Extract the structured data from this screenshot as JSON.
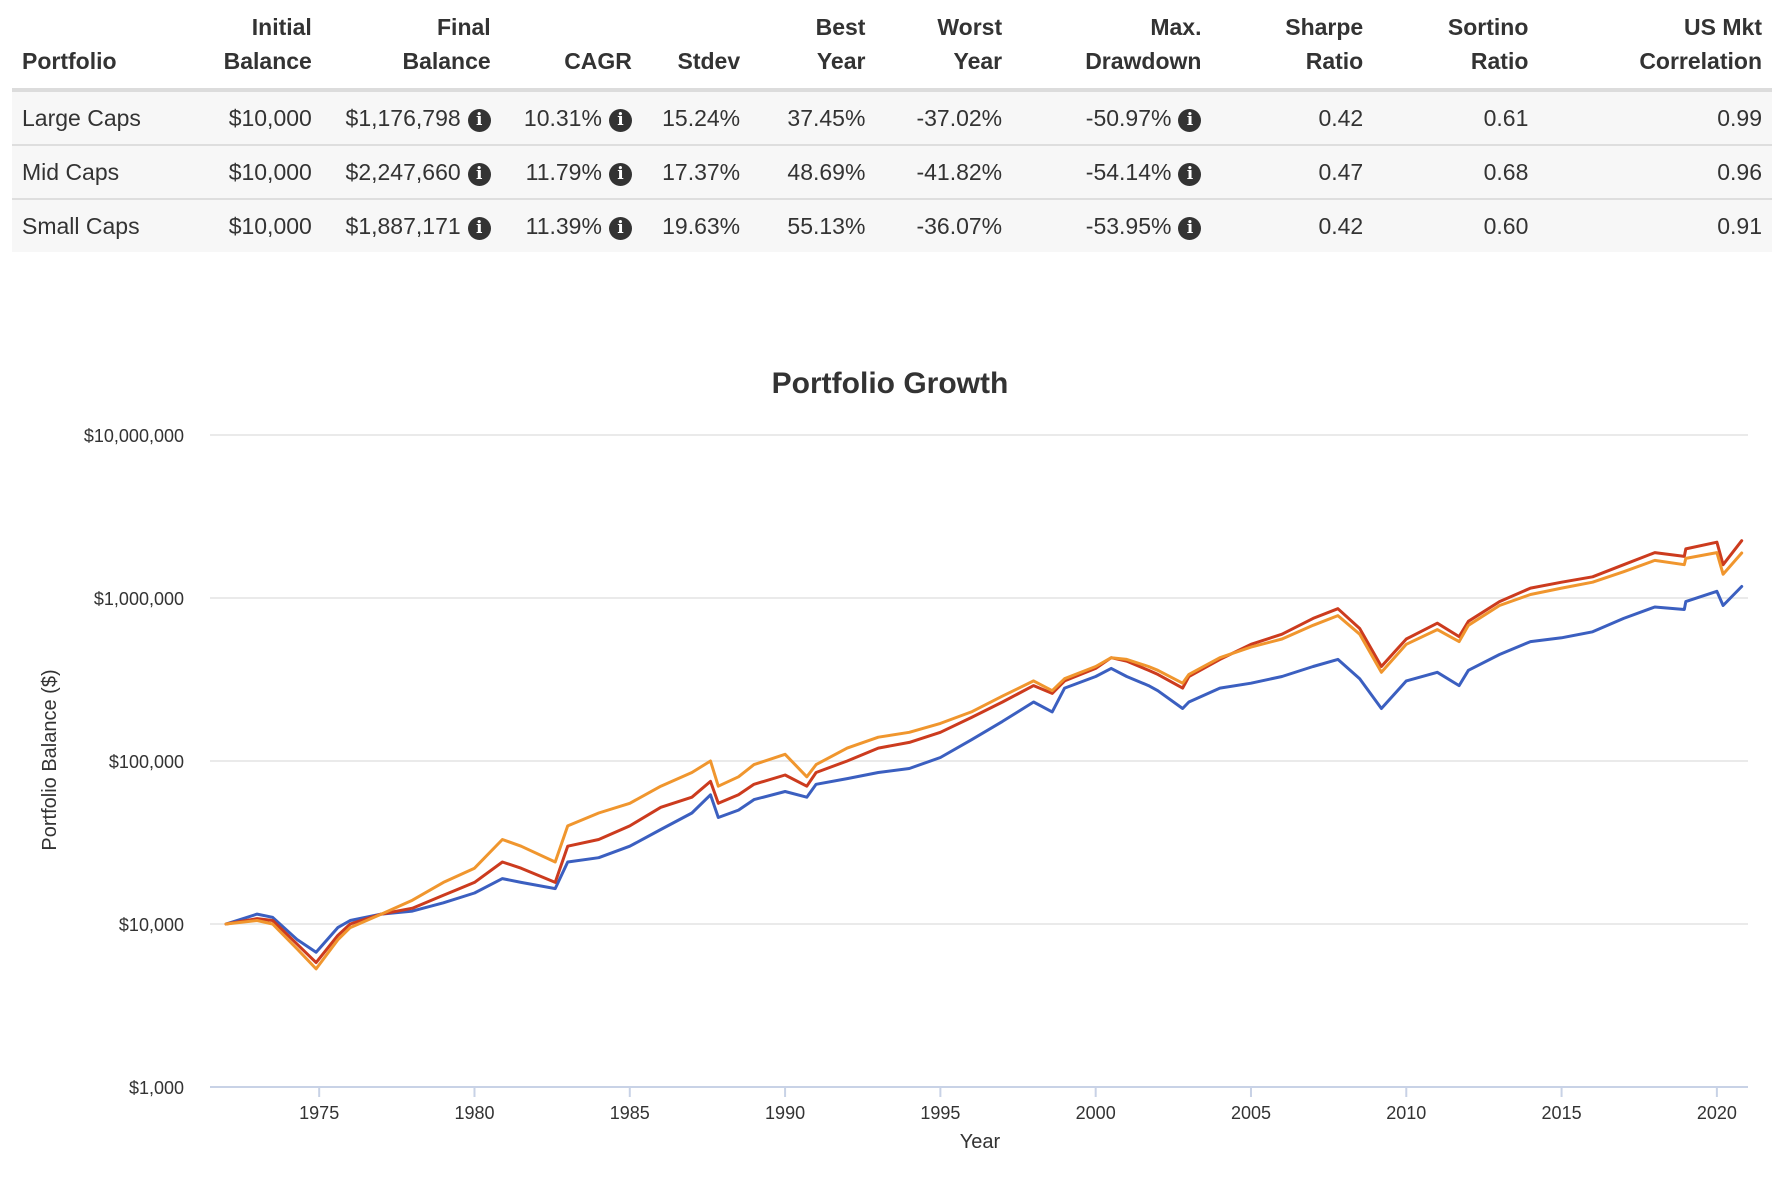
{
  "table": {
    "headers": [
      {
        "line1": "",
        "line2": "Portfolio"
      },
      {
        "line1": "Initial",
        "line2": "Balance"
      },
      {
        "line1": "Final",
        "line2": "Balance"
      },
      {
        "line1": "",
        "line2": "CAGR"
      },
      {
        "line1": "",
        "line2": "Stdev"
      },
      {
        "line1": "Best",
        "line2": "Year"
      },
      {
        "line1": "Worst",
        "line2": "Year"
      },
      {
        "line1": "Max.",
        "line2": "Drawdown"
      },
      {
        "line1": "Sharpe",
        "line2": "Ratio"
      },
      {
        "line1": "Sortino",
        "line2": "Ratio"
      },
      {
        "line1": "US Mkt",
        "line2": "Correlation"
      }
    ],
    "rows": [
      {
        "portfolio": "Large Caps",
        "initial_balance": "$10,000",
        "final_balance": "$1,176,798",
        "cagr": "10.31%",
        "stdev": "15.24%",
        "best_year": "37.45%",
        "worst_year": "-37.02%",
        "max_drawdown": "-50.97%",
        "sharpe": "0.42",
        "sortino": "0.61",
        "correlation": "0.99"
      },
      {
        "portfolio": "Mid Caps",
        "initial_balance": "$10,000",
        "final_balance": "$2,247,660",
        "cagr": "11.79%",
        "stdev": "17.37%",
        "best_year": "48.69%",
        "worst_year": "-41.82%",
        "max_drawdown": "-54.14%",
        "sharpe": "0.47",
        "sortino": "0.68",
        "correlation": "0.96"
      },
      {
        "portfolio": "Small Caps",
        "initial_balance": "$10,000",
        "final_balance": "$1,887,171",
        "cagr": "11.39%",
        "stdev": "19.63%",
        "best_year": "55.13%",
        "worst_year": "-36.07%",
        "max_drawdown": "-53.95%",
        "sharpe": "0.42",
        "sortino": "0.60",
        "correlation": "0.91"
      }
    ],
    "info_icon": "info-circle-icon"
  },
  "chart_data": {
    "type": "line",
    "title": "Portfolio Growth",
    "xlabel": "Year",
    "ylabel": "Portfolio Balance ($)",
    "yscale": "log",
    "ylim": [
      1000,
      10000000
    ],
    "xlim": [
      1972,
      2020.8
    ],
    "y_ticks": [
      1000,
      10000,
      100000,
      1000000,
      10000000
    ],
    "y_tick_labels": [
      "$1,000",
      "$10,000",
      "$100,000",
      "$1,000,000",
      "$10,000,000"
    ],
    "x_ticks": [
      1975,
      1980,
      1985,
      1990,
      1995,
      2000,
      2005,
      2010,
      2015,
      2020
    ],
    "x_tick_labels": [
      "1975",
      "1980",
      "1985",
      "1990",
      "1995",
      "2000",
      "2005",
      "2010",
      "2015",
      "2020"
    ],
    "grid": true,
    "series": [
      {
        "name": "Large Caps",
        "color": "#3b5fc0",
        "x": [
          1972,
          1973,
          1973.5,
          1974.3,
          1974.9,
          1975.6,
          1976,
          1977,
          1978,
          1979,
          1980,
          1980.9,
          1981.5,
          1982.6,
          1983,
          1984,
          1985,
          1986,
          1987,
          1987.6,
          1987.85,
          1988.5,
          1989,
          1990,
          1990.7,
          1991,
          1992,
          1993,
          1994,
          1995,
          1996,
          1997,
          1998,
          1998.6,
          1999,
          2000,
          2000.5,
          2001,
          2001.7,
          2002,
          2002.8,
          2003,
          2004,
          2005,
          2006,
          2007,
          2007.8,
          2008.5,
          2009.2,
          2010,
          2011,
          2011.7,
          2012,
          2013,
          2014,
          2015,
          2016,
          2017,
          2018,
          2018.95,
          2019,
          2020,
          2020.2,
          2020.8
        ],
        "values": [
          10000,
          11500,
          11000,
          8000,
          6700,
          9500,
          10500,
          11500,
          12000,
          13500,
          15500,
          19000,
          18000,
          16500,
          24000,
          25500,
          30000,
          38000,
          48000,
          62000,
          45000,
          50000,
          58000,
          65000,
          60000,
          72000,
          78000,
          85000,
          90000,
          105000,
          135000,
          175000,
          230000,
          200000,
          280000,
          330000,
          370000,
          330000,
          290000,
          270000,
          210000,
          230000,
          280000,
          300000,
          330000,
          380000,
          420000,
          320000,
          210000,
          310000,
          350000,
          290000,
          360000,
          450000,
          540000,
          570000,
          620000,
          750000,
          880000,
          850000,
          950000,
          1100000,
          900000,
          1176798
        ]
      },
      {
        "name": "Mid Caps",
        "color": "#cc3b1e",
        "x": [
          1972,
          1973,
          1973.5,
          1974.3,
          1974.9,
          1975.6,
          1976,
          1977,
          1978,
          1979,
          1980,
          1980.9,
          1981.5,
          1982.6,
          1983,
          1984,
          1985,
          1986,
          1987,
          1987.6,
          1987.85,
          1988.5,
          1989,
          1990,
          1990.7,
          1991,
          1992,
          1993,
          1994,
          1995,
          1996,
          1997,
          1998,
          1998.6,
          1999,
          2000,
          2000.5,
          2001,
          2001.7,
          2002,
          2002.8,
          2003,
          2004,
          2005,
          2006,
          2007,
          2007.8,
          2008.5,
          2009.2,
          2010,
          2011,
          2011.7,
          2012,
          2013,
          2014,
          2015,
          2016,
          2017,
          2018,
          2018.95,
          2019,
          2020,
          2020.2,
          2020.8
        ],
        "values": [
          10000,
          10800,
          10500,
          7500,
          5800,
          8500,
          10000,
          11500,
          12500,
          15000,
          18000,
          24000,
          22000,
          18000,
          30000,
          33000,
          40000,
          52000,
          60000,
          75000,
          55000,
          62000,
          72000,
          82000,
          70000,
          85000,
          100000,
          120000,
          130000,
          150000,
          185000,
          230000,
          290000,
          260000,
          310000,
          370000,
          430000,
          410000,
          360000,
          340000,
          280000,
          330000,
          420000,
          520000,
          600000,
          750000,
          860000,
          650000,
          380000,
          560000,
          700000,
          580000,
          720000,
          950000,
          1150000,
          1250000,
          1350000,
          1600000,
          1900000,
          1800000,
          2000000,
          2200000,
          1600000,
          2247660
        ]
      },
      {
        "name": "Small Caps",
        "color": "#f0962e",
        "x": [
          1972,
          1973,
          1973.5,
          1974.3,
          1974.9,
          1975.6,
          1976,
          1977,
          1978,
          1979,
          1980,
          1980.9,
          1981.5,
          1982.6,
          1983,
          1984,
          1985,
          1986,
          1987,
          1987.6,
          1987.85,
          1988.5,
          1989,
          1990,
          1990.7,
          1991,
          1992,
          1993,
          1994,
          1995,
          1996,
          1997,
          1998,
          1998.6,
          1999,
          2000,
          2000.5,
          2001,
          2001.7,
          2002,
          2002.8,
          2003,
          2004,
          2005,
          2006,
          2007,
          2007.8,
          2008.5,
          2009.2,
          2010,
          2011,
          2011.7,
          2012,
          2013,
          2014,
          2015,
          2016,
          2017,
          2018,
          2018.95,
          2019,
          2020,
          2020.2,
          2020.8
        ],
        "values": [
          10000,
          10500,
          10000,
          7000,
          5300,
          8000,
          9500,
          11500,
          14000,
          18000,
          22000,
          33000,
          30000,
          24000,
          40000,
          48000,
          55000,
          70000,
          85000,
          100000,
          70000,
          80000,
          95000,
          110000,
          80000,
          95000,
          120000,
          140000,
          150000,
          170000,
          200000,
          250000,
          310000,
          270000,
          320000,
          380000,
          430000,
          420000,
          380000,
          360000,
          300000,
          340000,
          430000,
          500000,
          560000,
          680000,
          780000,
          600000,
          350000,
          520000,
          640000,
          540000,
          680000,
          900000,
          1050000,
          1150000,
          1250000,
          1450000,
          1700000,
          1600000,
          1750000,
          1900000,
          1400000,
          1887171
        ]
      }
    ]
  }
}
